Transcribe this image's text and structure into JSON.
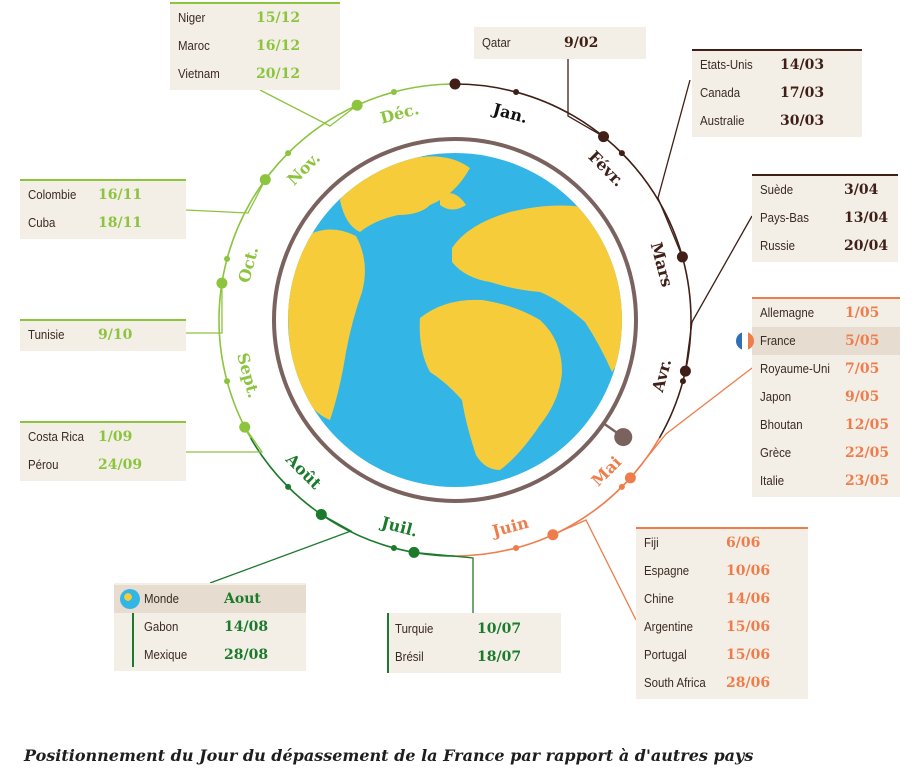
{
  "chart_data": {
    "type": "radial-calendar",
    "title": "Positionnement du Jour du dépassement de la France par rapport à d'autres pays",
    "months": [
      "Jan.",
      "Févr.",
      "Mars",
      "Avr.",
      "Mai",
      "Juin",
      "Juil.",
      "Août",
      "Sept.",
      "Oct.",
      "Nov.",
      "Déc."
    ],
    "highlight": "France",
    "groups": [
      {
        "id": "qatar",
        "entries": [
          {
            "country": "Qatar",
            "date": "9/02"
          }
        ]
      },
      {
        "id": "mar",
        "entries": [
          {
            "country": "Etats-Unis",
            "date": "14/03"
          },
          {
            "country": "Canada",
            "date": "17/03"
          },
          {
            "country": "Australie",
            "date": "30/03"
          }
        ]
      },
      {
        "id": "apr",
        "entries": [
          {
            "country": "Suède",
            "date": "3/04"
          },
          {
            "country": "Pays-Bas",
            "date": "13/04"
          },
          {
            "country": "Russie",
            "date": "20/04"
          }
        ]
      },
      {
        "id": "may",
        "entries": [
          {
            "country": "Allemagne",
            "date": "1/05"
          },
          {
            "country": "France",
            "date": "5/05"
          },
          {
            "country": "Royaume-Uni",
            "date": "7/05"
          },
          {
            "country": "Japon",
            "date": "9/05"
          },
          {
            "country": "Bhoutan",
            "date": "12/05"
          },
          {
            "country": "Grèce",
            "date": "22/05"
          },
          {
            "country": "Italie",
            "date": "23/05"
          }
        ]
      },
      {
        "id": "jun",
        "entries": [
          {
            "country": "Fiji",
            "date": "6/06"
          },
          {
            "country": "Espagne",
            "date": "10/06"
          },
          {
            "country": "Chine",
            "date": "14/06"
          },
          {
            "country": "Argentine",
            "date": "15/06"
          },
          {
            "country": "Portugal",
            "date": "15/06"
          },
          {
            "country": "South Africa",
            "date": "28/06"
          }
        ]
      },
      {
        "id": "jul",
        "entries": [
          {
            "country": "Turquie",
            "date": "10/07"
          },
          {
            "country": "Brésil",
            "date": "18/07"
          }
        ]
      },
      {
        "id": "aug",
        "entries": [
          {
            "country": "Monde",
            "date": "Aout"
          },
          {
            "country": "Gabon",
            "date": "14/08"
          },
          {
            "country": "Mexique",
            "date": "28/08"
          }
        ]
      },
      {
        "id": "sep",
        "entries": [
          {
            "country": "Costa Rica",
            "date": "1/09"
          },
          {
            "country": "Pérou",
            "date": "24/09"
          }
        ]
      },
      {
        "id": "oct",
        "entries": [
          {
            "country": "Tunisie",
            "date": "9/10"
          }
        ]
      },
      {
        "id": "nov",
        "entries": [
          {
            "country": "Colombie",
            "date": "16/11"
          },
          {
            "country": "Cuba",
            "date": "18/11"
          }
        ]
      },
      {
        "id": "dec",
        "entries": [
          {
            "country": "Niger",
            "date": "15/12"
          },
          {
            "country": "Maroc",
            "date": "16/12"
          },
          {
            "country": "Vietnam",
            "date": "20/12"
          }
        ]
      }
    ]
  },
  "colors": {
    "brown": "#3f1f16",
    "orange": "#ef7d4b",
    "darkgreen": "#1c7a2c",
    "lightgreen": "#8cc43e",
    "ocean": "#33b6e6",
    "land": "#f7cc3a",
    "rim": "#7a625e",
    "box": "#f3efe7"
  }
}
